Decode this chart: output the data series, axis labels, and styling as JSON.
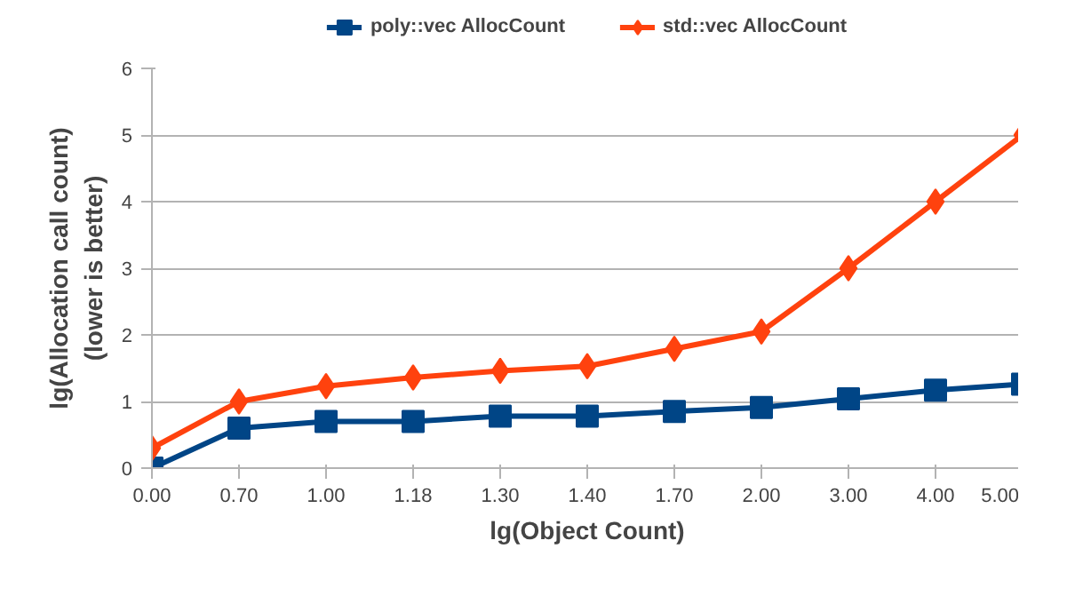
{
  "chart_data": {
    "type": "line",
    "xlabel": "lg(Object Count)",
    "ylabel": "lg(Allocation call count)\n(lower is better)",
    "categories": [
      "0.00",
      "0.70",
      "1.00",
      "1.18",
      "1.30",
      "1.40",
      "1.70",
      "2.00",
      "3.00",
      "4.00",
      "5.00"
    ],
    "series": [
      {
        "name": "poly::vec AllocCount",
        "color": "#004586",
        "marker": "square",
        "values": [
          0,
          0.6,
          0.7,
          0.7,
          0.78,
          0.78,
          0.85,
          0.91,
          1.04,
          1.17,
          1.26
        ]
      },
      {
        "name": "std::vec AllocCount",
        "color": "#ff420e",
        "marker": "diamond",
        "values": [
          0.3,
          1.0,
          1.23,
          1.36,
          1.46,
          1.53,
          1.79,
          2.05,
          3,
          4,
          5
        ]
      }
    ],
    "ylim": [
      0,
      6
    ],
    "yticks": [
      0,
      1,
      2,
      3,
      4,
      5,
      6
    ],
    "grid": "y",
    "legend": "top"
  }
}
